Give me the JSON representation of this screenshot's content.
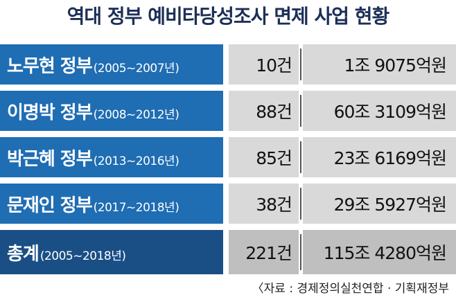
{
  "header": {
    "title": "역대 정부 예비타당성조사 면제 사업 현황"
  },
  "table": {
    "rows": [
      {
        "name": "노무현 정부",
        "period": "(2005~2007년)",
        "count": "10건",
        "amount": "1조 9075억원"
      },
      {
        "name": "이명박 정부",
        "period": "(2008~2012년)",
        "count": "88건",
        "amount": "60조 3109억원"
      },
      {
        "name": "박근혜 정부",
        "period": "(2013~2016년)",
        "count": "85건",
        "amount": "23조 6169억원"
      },
      {
        "name": "문재인 정부",
        "period": "(2017~2018년)",
        "count": "38건",
        "amount": "29조 5927억원"
      }
    ],
    "total": {
      "name": "총계",
      "period": "(2005~2018년)",
      "count": "221건",
      "amount": "115조 4280억원"
    }
  },
  "source": "〈자료 : 경제정의실천연합 · 기획재정부"
}
